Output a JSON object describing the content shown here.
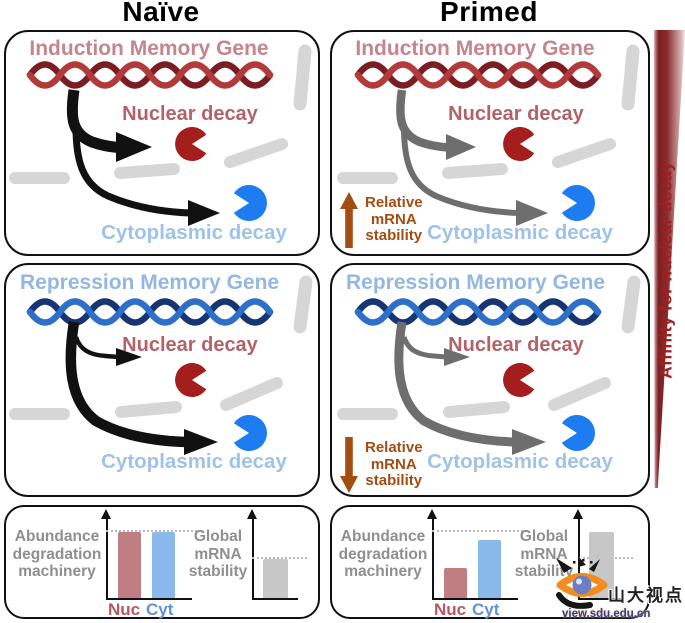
{
  "headers": {
    "naive": "Naïve",
    "primed": "Primed"
  },
  "sidebar": {
    "affinity_label": "Affinity for nuclear decay"
  },
  "panels": {
    "naive_induction": {
      "title": "Induction Memory Gene",
      "nuclear": "Nuclear decay",
      "cytoplasmic": "Cytoplasmic decay"
    },
    "primed_induction": {
      "title": "Induction Memory Gene",
      "nuclear": "Nuclear decay",
      "cytoplasmic": "Cytoplasmic decay",
      "stability_lines": [
        "Relative",
        "mRNA",
        "stability"
      ],
      "stability_direction": "up"
    },
    "naive_repression": {
      "title": "Repression Memory Gene",
      "nuclear": "Nuclear decay",
      "cytoplasmic": "Cytoplasmic decay"
    },
    "primed_repression": {
      "title": "Repression Memory Gene",
      "nuclear": "Nuclear decay",
      "cytoplasmic": "Cytoplasmic decay",
      "stability_lines": [
        "Relative",
        "mRNA",
        "stability"
      ],
      "stability_direction": "down"
    }
  },
  "bottom": {
    "naive": {
      "machinery_lines": [
        "Abundance",
        "degradation",
        "machinery"
      ],
      "global_lines": [
        "Global",
        "mRNA",
        "stability"
      ],
      "bar_labels": {
        "nuc": "Nuc",
        "cyt": "Cyt"
      },
      "machinery": {
        "nuc_pct": 84,
        "cyt_pct": 84,
        "dashed_pct": 84
      },
      "global": {
        "bar_pct": 49,
        "dashed_pct": 50
      }
    },
    "primed": {
      "machinery_lines": [
        "Abundance",
        "degradation",
        "machinery"
      ],
      "global_lines": [
        "Global",
        "mRNA",
        "stability"
      ],
      "bar_labels": {
        "nuc": "Nuc",
        "cyt": "Cyt"
      },
      "machinery": {
        "nuc_pct": 38,
        "cyt_pct": 74,
        "dashed_pct": 84
      },
      "global": {
        "bar_pct": 84,
        "dashed_pct": 49
      }
    }
  },
  "watermark": {
    "title": "山大视点",
    "url": "view.sdu.edu.cn"
  },
  "colors": {
    "pacman_red": "#a41e1e",
    "pacman_blue": "#1d7cf0",
    "dna_red_dark": "#7a1e24",
    "dna_red_light": "#b23a3a",
    "dna_blue_dark": "#173572",
    "dna_blue_light": "#2e6fc9",
    "rose_text": "#c5858c",
    "nuclear_text": "#b2636a",
    "cyto_text": "#9fc2e9",
    "repression_text": "#94b7e2",
    "stability_brown": "#a34d12",
    "arrow_black": "#111111",
    "arrow_gray": "#6e6e6e",
    "gray_dash": "#d6d6d6",
    "bar_nuc": "#c07d82",
    "bar_cyt": "#89b9eb",
    "bar_gray": "#c7c7c7",
    "wedge_red": "#7c1f21"
  }
}
